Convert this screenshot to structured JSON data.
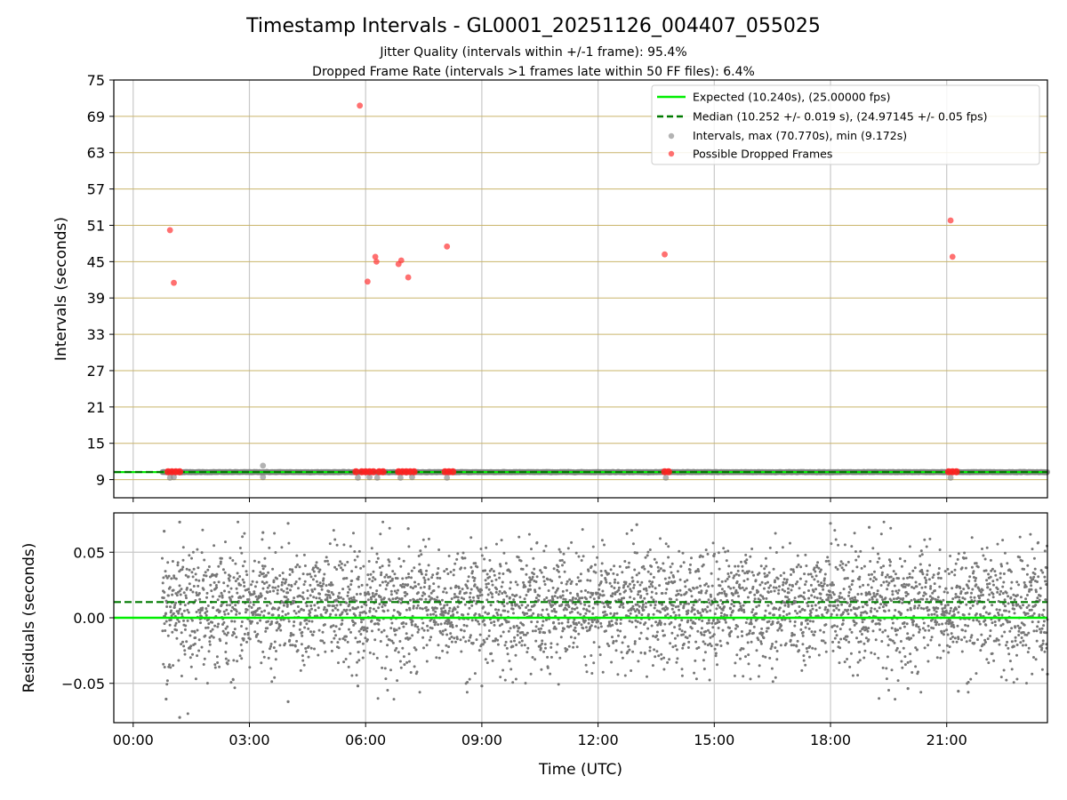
{
  "chart_data": [
    {
      "type": "scatter",
      "panel": "intervals",
      "title": "Timestamp Intervals - GL0001_20251126_004407_055025",
      "subtitle_lines": [
        "Jitter Quality (intervals within +/-1 frame): 95.4%",
        "Dropped Frame Rate (intervals >1 frames late within 50 FF files): 6.4%"
      ],
      "ylabel": "Intervals (seconds)",
      "ylim": [
        6,
        75
      ],
      "xlim_hours": [
        -0.5,
        23.6
      ],
      "yticks": [
        9,
        15,
        21,
        27,
        33,
        39,
        45,
        51,
        57,
        63,
        69,
        75
      ],
      "ytick_labels": [
        "9",
        "15",
        "21",
        "27",
        "33",
        "39",
        "45",
        "51",
        "57",
        "63",
        "69",
        "75"
      ],
      "grid": true,
      "legend_position": "top-right",
      "legend": [
        {
          "label": "Expected (10.240s), (25.00000 fps)",
          "kind": "line",
          "color": "#00ee00"
        },
        {
          "label": "Median (10.252 +/- 0.019 s), (24.97145 +/- 0.05 fps)",
          "kind": "dashed",
          "color": "#007a00"
        },
        {
          "label": "Intervals, max (70.770s), min (9.172s)",
          "kind": "dot",
          "color": "#808080"
        },
        {
          "label": "Possible Dropped Frames",
          "kind": "dot",
          "color": "#ff4040"
        }
      ],
      "expected_value": 10.24,
      "median_value": 10.252,
      "intervals_band": {
        "start_hour": 0.75,
        "end_hour": 23.6,
        "center": 10.24
      },
      "intervals_extra": [
        {
          "x": 0.95,
          "y": 9.3
        },
        {
          "x": 1.05,
          "y": 9.4
        },
        {
          "x": 3.35,
          "y": 11.3
        },
        {
          "x": 3.35,
          "y": 9.4
        },
        {
          "x": 5.8,
          "y": 9.3
        },
        {
          "x": 6.1,
          "y": 9.4
        },
        {
          "x": 6.3,
          "y": 9.3
        },
        {
          "x": 6.9,
          "y": 9.3
        },
        {
          "x": 7.2,
          "y": 9.4
        },
        {
          "x": 8.1,
          "y": 9.3
        },
        {
          "x": 13.75,
          "y": 9.3
        },
        {
          "x": 21.1,
          "y": 9.3
        }
      ],
      "dropped_frames": [
        {
          "x": 0.95,
          "y": 50.2
        },
        {
          "x": 1.05,
          "y": 41.5
        },
        {
          "x": 5.85,
          "y": 70.77
        },
        {
          "x": 6.05,
          "y": 41.7
        },
        {
          "x": 6.25,
          "y": 45.8
        },
        {
          "x": 6.28,
          "y": 45.0
        },
        {
          "x": 6.85,
          "y": 44.6
        },
        {
          "x": 6.92,
          "y": 45.2
        },
        {
          "x": 7.1,
          "y": 42.4
        },
        {
          "x": 8.1,
          "y": 47.5
        },
        {
          "x": 13.72,
          "y": 46.2
        },
        {
          "x": 21.1,
          "y": 51.8
        },
        {
          "x": 21.15,
          "y": 45.8
        }
      ],
      "dropped_near_baseline": [
        {
          "x": 0.9,
          "y": 10.3
        },
        {
          "x": 1.0,
          "y": 10.3
        },
        {
          "x": 1.1,
          "y": 10.3
        },
        {
          "x": 1.2,
          "y": 10.3
        },
        {
          "x": 5.75,
          "y": 10.3
        },
        {
          "x": 5.9,
          "y": 10.3
        },
        {
          "x": 6.0,
          "y": 10.3
        },
        {
          "x": 6.1,
          "y": 10.3
        },
        {
          "x": 6.2,
          "y": 10.3
        },
        {
          "x": 6.35,
          "y": 10.3
        },
        {
          "x": 6.45,
          "y": 10.3
        },
        {
          "x": 6.85,
          "y": 10.3
        },
        {
          "x": 6.95,
          "y": 10.3
        },
        {
          "x": 7.05,
          "y": 10.3
        },
        {
          "x": 7.15,
          "y": 10.3
        },
        {
          "x": 7.25,
          "y": 10.3
        },
        {
          "x": 8.05,
          "y": 10.3
        },
        {
          "x": 8.15,
          "y": 10.3
        },
        {
          "x": 8.25,
          "y": 10.3
        },
        {
          "x": 13.72,
          "y": 10.3
        },
        {
          "x": 13.82,
          "y": 10.3
        },
        {
          "x": 21.05,
          "y": 10.3
        },
        {
          "x": 21.15,
          "y": 10.3
        },
        {
          "x": 21.25,
          "y": 10.3
        }
      ]
    },
    {
      "type": "scatter",
      "panel": "residuals",
      "ylabel": "Residuals (seconds)",
      "xlabel": "Time (UTC)",
      "ylim": [
        -0.08,
        0.08
      ],
      "xlim_hours": [
        -0.5,
        23.6
      ],
      "yticks": [
        0.05,
        0.0,
        -0.05
      ],
      "ytick_labels": [
        "0.05",
        "0.00",
        "−0.05"
      ],
      "xticks_hours": [
        0,
        3,
        6,
        9,
        12,
        15,
        18,
        21
      ],
      "xtick_labels": [
        "00:00",
        "03:00",
        "06:00",
        "09:00",
        "12:00",
        "15:00",
        "18:00",
        "21:00"
      ],
      "grid": true,
      "zero_line": 0.0,
      "median_offset": 0.012,
      "residual_points_summary": {
        "start_hour": 0.75,
        "end_hour": 23.6,
        "center": 0.012,
        "spread": 0.02,
        "min": -0.076,
        "max": 0.073
      },
      "residual_outliers": [
        {
          "x": 0.8,
          "y": 0.066
        },
        {
          "x": 0.85,
          "y": -0.062
        },
        {
          "x": 1.2,
          "y": 0.073
        },
        {
          "x": 1.2,
          "y": -0.076
        },
        {
          "x": 3.35,
          "y": 0.065
        },
        {
          "x": 4.0,
          "y": 0.072
        },
        {
          "x": 4.0,
          "y": -0.064
        },
        {
          "x": 5.8,
          "y": -0.052
        },
        {
          "x": 7.1,
          "y": 0.068
        },
        {
          "x": 9.0,
          "y": -0.052
        },
        {
          "x": 13.0,
          "y": 0.071
        },
        {
          "x": 18.0,
          "y": 0.072
        },
        {
          "x": 19.0,
          "y": 0.069
        },
        {
          "x": 20.0,
          "y": -0.054
        },
        {
          "x": 21.3,
          "y": -0.056
        },
        {
          "x": 23.6,
          "y": -0.043
        }
      ]
    }
  ]
}
